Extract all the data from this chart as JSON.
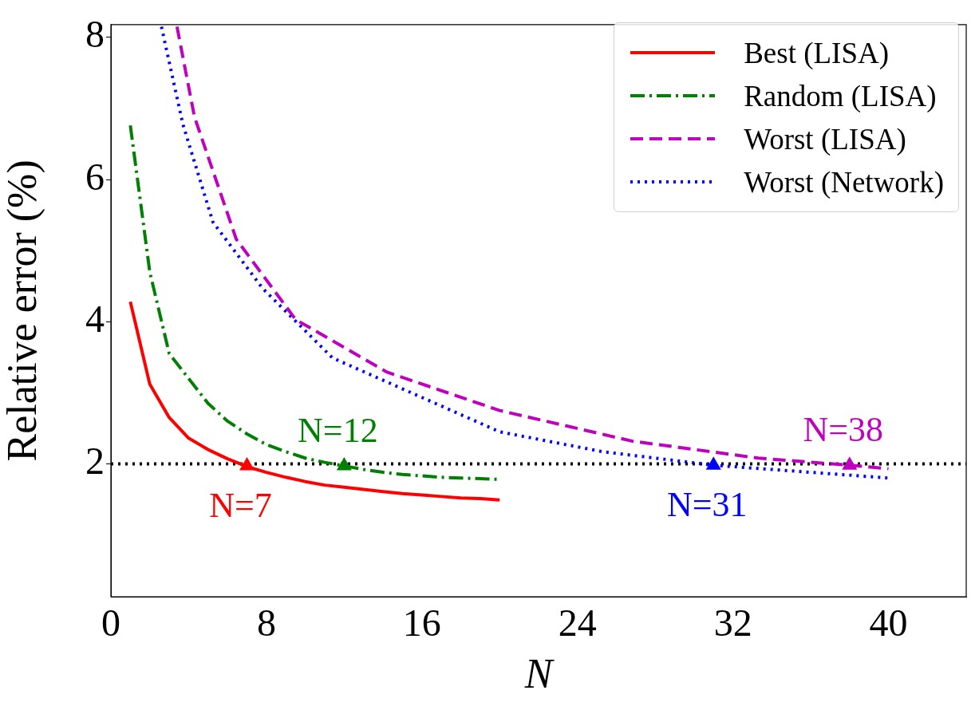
{
  "chart_data": {
    "type": "line",
    "xlabel": "N",
    "ylabel": "Relative error (%)",
    "xlim": [
      0,
      44
    ],
    "xticks": [
      0,
      8,
      16,
      24,
      32,
      40
    ],
    "ylim": [
      0.13,
      8.18
    ],
    "yticks": [
      2,
      4,
      6,
      8
    ],
    "legend": "top right",
    "grid": false,
    "marker": "none",
    "series": [
      {
        "name": "Best (LISA)",
        "color": "#ff0000",
        "line_style": "solid",
        "x": [
          1,
          2,
          3,
          4,
          5,
          6,
          7,
          8,
          9,
          10,
          11,
          12,
          13,
          14,
          15,
          16,
          17,
          18,
          19,
          20
        ],
        "values": [
          4.28,
          3.12,
          2.65,
          2.36,
          2.2,
          2.07,
          1.96,
          1.88,
          1.81,
          1.75,
          1.7,
          1.67,
          1.64,
          1.61,
          1.58,
          1.56,
          1.54,
          1.52,
          1.51,
          1.49
        ]
      },
      {
        "name": "Random (LISA)",
        "color": "#008000",
        "line_style": "dashdot",
        "x": [
          1,
          2,
          3,
          4,
          5,
          6,
          7,
          8,
          9,
          10,
          11,
          12,
          13,
          14,
          15,
          16,
          17,
          18,
          19,
          20
        ],
        "values": [
          6.76,
          4.7,
          3.55,
          3.2,
          2.85,
          2.6,
          2.42,
          2.27,
          2.17,
          2.08,
          2.02,
          1.97,
          1.92,
          1.88,
          1.85,
          1.83,
          1.81,
          1.8,
          1.79,
          1.78
        ]
      },
      {
        "name": "Worst (LISA)",
        "color": "#bf00bf",
        "line_style": "dashed",
        "x": [
          3.4,
          4.3,
          6.45,
          9.5,
          14.2,
          20,
          26.8,
          33.3,
          38,
          40
        ],
        "values": [
          8.15,
          6.88,
          5.16,
          4.03,
          3.29,
          2.75,
          2.32,
          2.08,
          1.98,
          1.93
        ]
      },
      {
        "name": "Worst (Network)",
        "color": "#0000ff",
        "line_style": "dotted",
        "x": [
          2.6,
          3.7,
          5.25,
          7.8,
          11.4,
          20,
          25.3,
          31,
          40
        ],
        "values": [
          8.15,
          6.78,
          5.4,
          4.47,
          3.49,
          2.45,
          2.17,
          1.98,
          1.8
        ]
      },
      {
        "type": "scatter",
        "marker": "triangle",
        "x": [
          7,
          12,
          31,
          38
        ],
        "values": [
          1.97,
          1.97,
          1.98,
          1.98
        ],
        "colors": [
          "#ff0000",
          "#008000",
          "#0000ff",
          "#bf00bf"
        ]
      }
    ],
    "ref_lines": [
      {
        "axis": "y",
        "value": 2,
        "color": "#000000",
        "line_style": "dotted"
      }
    ],
    "annotations": [
      {
        "text": "N=7",
        "x": 7,
        "y": 1.97
      },
      {
        "text": "N=12",
        "x": 12,
        "y": 1.97
      },
      {
        "text": "N=31",
        "x": 31,
        "y": 1.98
      },
      {
        "text": "N=38",
        "x": 38,
        "y": 1.98
      }
    ]
  }
}
